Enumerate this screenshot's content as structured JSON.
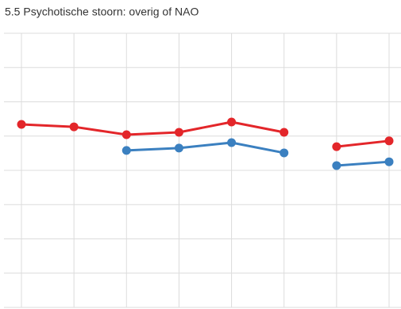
{
  "chart_data": {
    "type": "line",
    "title": "5.5 Psychotische stoorn: overig of NAO",
    "x": [
      0,
      1,
      2,
      3,
      4,
      5,
      5.5,
      6,
      7
    ],
    "series": [
      {
        "color": "#e3262a",
        "values": [
          5.34,
          5.27,
          5.04,
          5.11,
          5.41,
          5.11,
          null,
          4.69,
          4.86
        ]
      },
      {
        "color": "#3b80c0",
        "values": [
          null,
          null,
          4.58,
          4.65,
          4.81,
          4.51,
          null,
          4.14,
          4.25
        ]
      }
    ],
    "xlim": [
      0,
      7
    ],
    "xticks": [
      0,
      1,
      2,
      3,
      4,
      5,
      6,
      7
    ],
    "ylim": [
      0,
      8
    ],
    "yticks": [
      0,
      1,
      2,
      3,
      4,
      5,
      6,
      7,
      8
    ],
    "grid": true
  }
}
